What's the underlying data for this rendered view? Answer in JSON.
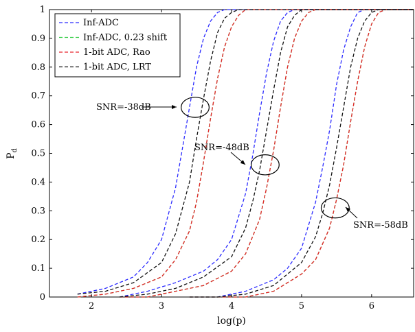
{
  "chart_data": {
    "type": "line",
    "xlabel": "log(p)",
    "ylabel": "P",
    "ylabel_subscript": "d",
    "xlim": [
      1.4,
      6.6
    ],
    "ylim": [
      0,
      1
    ],
    "xticks": [
      "2",
      "3",
      "4",
      "5",
      "6"
    ],
    "yticks": [
      "0",
      "0.1",
      "0.2",
      "0.3",
      "0.4",
      "0.5",
      "0.6",
      "0.7",
      "0.8",
      "0.9",
      "1"
    ],
    "grid": false,
    "legend_position": "top-left",
    "line_style": "dashed",
    "series": [
      {
        "name": "Inf-ADC",
        "color": "#2b2bff",
        "groups": [
          {
            "x": [
              1.8,
              2.2,
              2.6,
              2.8,
              3.0,
              3.2,
              3.3,
              3.4,
              3.5,
              3.6,
              3.7,
              3.8,
              3.9,
              4.0
            ],
            "y": [
              0.01,
              0.03,
              0.07,
              0.12,
              0.2,
              0.38,
              0.52,
              0.66,
              0.8,
              0.9,
              0.96,
              0.99,
              1.0,
              1.0
            ]
          },
          {
            "x": [
              2.4,
              2.8,
              3.2,
              3.6,
              3.8,
              4.0,
              4.2,
              4.3,
              4.4,
              4.5,
              4.6,
              4.7,
              4.8,
              4.9
            ],
            "y": [
              0.0,
              0.02,
              0.05,
              0.09,
              0.13,
              0.2,
              0.36,
              0.49,
              0.64,
              0.78,
              0.89,
              0.96,
              0.99,
              1.0
            ]
          },
          {
            "x": [
              3.4,
              3.8,
              4.2,
              4.6,
              4.8,
              5.0,
              5.2,
              5.3,
              5.4,
              5.5,
              5.6,
              5.7,
              5.8,
              5.9
            ],
            "y": [
              0.0,
              0.0,
              0.02,
              0.06,
              0.1,
              0.17,
              0.33,
              0.45,
              0.58,
              0.74,
              0.86,
              0.94,
              0.99,
              1.0
            ]
          }
        ]
      },
      {
        "name": "Inf-ADC, 0.23 shift",
        "color": "#2ecc40",
        "groups": [
          {
            "x": [
              1.8,
              2.2,
              2.6,
              3.0,
              3.2,
              3.4,
              3.5,
              3.6,
              3.7,
              3.8,
              3.9,
              4.0,
              4.1,
              4.2,
              4.3
            ],
            "y": [
              0.0,
              0.01,
              0.03,
              0.07,
              0.13,
              0.23,
              0.33,
              0.47,
              0.62,
              0.76,
              0.87,
              0.94,
              0.98,
              1.0,
              1.0
            ]
          },
          {
            "x": [
              2.4,
              2.8,
              3.2,
              3.6,
              4.0,
              4.2,
              4.4,
              4.5,
              4.6,
              4.7,
              4.8,
              4.9,
              5.0,
              5.1,
              5.2
            ],
            "y": [
              0.0,
              0.0,
              0.02,
              0.04,
              0.09,
              0.15,
              0.27,
              0.38,
              0.51,
              0.66,
              0.8,
              0.9,
              0.96,
              0.99,
              1.0
            ]
          },
          {
            "x": [
              3.4,
              3.8,
              4.2,
              4.6,
              5.0,
              5.2,
              5.4,
              5.5,
              5.6,
              5.7,
              5.8,
              5.9,
              6.0,
              6.1,
              6.2
            ],
            "y": [
              0.0,
              0.0,
              0.0,
              0.02,
              0.08,
              0.13,
              0.24,
              0.34,
              0.46,
              0.61,
              0.75,
              0.87,
              0.95,
              0.99,
              1.0
            ]
          }
        ]
      },
      {
        "name": "1-bit ADC, Rao",
        "color": "#e8232a",
        "groups": [
          {
            "x": [
              1.8,
              2.2,
              2.6,
              3.0,
              3.2,
              3.4,
              3.5,
              3.6,
              3.7,
              3.8,
              3.9,
              4.0,
              4.1,
              4.2,
              4.3
            ],
            "y": [
              0.0,
              0.01,
              0.03,
              0.07,
              0.13,
              0.23,
              0.33,
              0.47,
              0.62,
              0.76,
              0.87,
              0.94,
              0.98,
              1.0,
              1.0
            ]
          },
          {
            "x": [
              2.4,
              2.8,
              3.2,
              3.6,
              4.0,
              4.2,
              4.4,
              4.5,
              4.6,
              4.7,
              4.8,
              4.9,
              5.0,
              5.1,
              5.2
            ],
            "y": [
              0.0,
              0.0,
              0.02,
              0.04,
              0.09,
              0.15,
              0.27,
              0.38,
              0.51,
              0.66,
              0.8,
              0.9,
              0.96,
              0.99,
              1.0
            ]
          },
          {
            "x": [
              3.4,
              3.8,
              4.2,
              4.6,
              5.0,
              5.2,
              5.4,
              5.5,
              5.6,
              5.7,
              5.8,
              5.9,
              6.0,
              6.1,
              6.2
            ],
            "y": [
              0.0,
              0.0,
              0.0,
              0.02,
              0.08,
              0.13,
              0.24,
              0.34,
              0.46,
              0.61,
              0.75,
              0.87,
              0.95,
              0.99,
              1.0
            ]
          }
        ]
      },
      {
        "name": "1-bit ADC, LRT",
        "color": "#111111",
        "groups": [
          {
            "x": [
              1.8,
              2.2,
              2.6,
              3.0,
              3.2,
              3.4,
              3.5,
              3.6,
              3.7,
              3.8,
              3.9,
              4.0,
              4.1
            ],
            "y": [
              0.01,
              0.02,
              0.05,
              0.12,
              0.22,
              0.4,
              0.55,
              0.69,
              0.82,
              0.92,
              0.97,
              0.99,
              1.0
            ]
          },
          {
            "x": [
              2.4,
              2.8,
              3.2,
              3.6,
              4.0,
              4.2,
              4.3,
              4.4,
              4.5,
              4.6,
              4.7,
              4.8,
              4.9,
              5.0
            ],
            "y": [
              0.0,
              0.01,
              0.03,
              0.07,
              0.14,
              0.24,
              0.33,
              0.44,
              0.58,
              0.72,
              0.85,
              0.94,
              0.98,
              1.0
            ]
          },
          {
            "x": [
              3.4,
              3.8,
              4.2,
              4.6,
              5.0,
              5.2,
              5.3,
              5.4,
              5.5,
              5.6,
              5.7,
              5.8,
              5.9,
              6.0,
              6.1
            ],
            "y": [
              0.0,
              0.0,
              0.01,
              0.04,
              0.12,
              0.21,
              0.29,
              0.39,
              0.52,
              0.66,
              0.8,
              0.9,
              0.96,
              0.99,
              1.0
            ]
          }
        ]
      }
    ],
    "annotations": [
      {
        "text": "SNR=-38dB",
        "ellipse_center": [
          3.48,
          0.66
        ],
        "ellipse_radius": [
          0.2,
          0.035
        ]
      },
      {
        "text": "SNR=-48dB",
        "ellipse_center": [
          4.48,
          0.46
        ],
        "ellipse_radius": [
          0.2,
          0.035
        ]
      },
      {
        "text": "SNR=-58dB",
        "ellipse_center": [
          5.48,
          0.31
        ],
        "ellipse_radius": [
          0.2,
          0.035
        ]
      }
    ]
  }
}
